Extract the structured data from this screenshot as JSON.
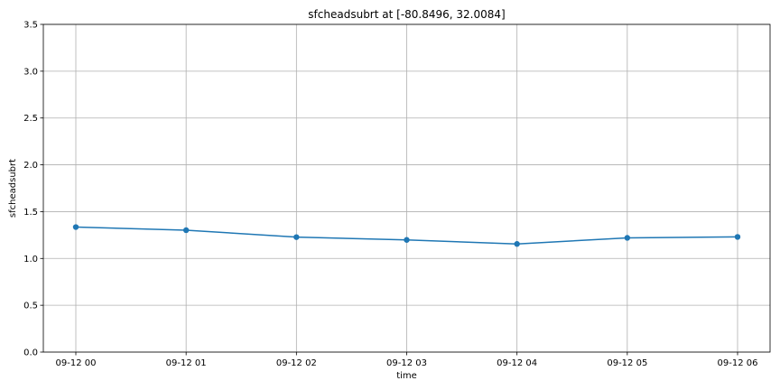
{
  "chart_data": {
    "type": "line",
    "title": "sfcheadsubrt at [-80.8496, 32.0084]",
    "xlabel": "time",
    "ylabel": "sfcheadsubrt",
    "x": [
      "09-12 00",
      "09-12 01",
      "09-12 02",
      "09-12 03",
      "09-12 04",
      "09-12 05",
      "09-12 06"
    ],
    "series": [
      {
        "values": [
          1.335,
          1.302,
          1.228,
          1.198,
          1.155,
          1.22,
          1.23
        ],
        "color": "#1f77b4",
        "marker": "circle"
      }
    ],
    "ylim": [
      0,
      3.5
    ],
    "yticks": [
      "0.0",
      "0.5",
      "1.0",
      "1.5",
      "2.0",
      "2.5",
      "3.0",
      "3.5"
    ],
    "grid": true,
    "legend": "none"
  }
}
